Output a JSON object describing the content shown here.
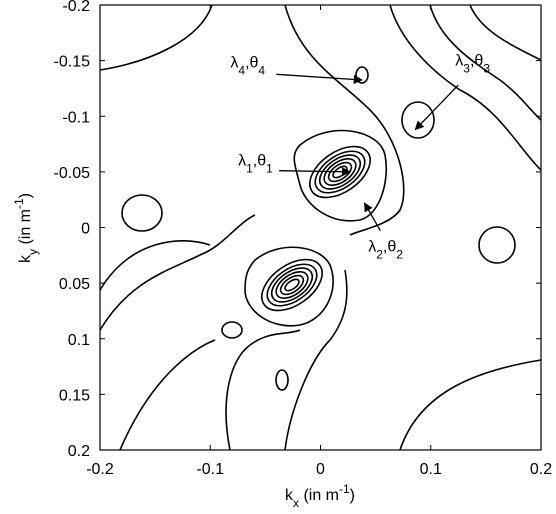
{
  "chart_data": {
    "type": "contour",
    "xlabel": [
      "k",
      "x",
      " (in m",
      "-1",
      ")"
    ],
    "ylabel": [
      "k",
      "y",
      " (in m",
      "-1",
      ")"
    ],
    "xlim": [
      -0.2,
      0.2
    ],
    "ylim": [
      -0.2,
      0.2
    ],
    "y_inverted": true,
    "xticks": [
      -0.2,
      -0.1,
      0,
      0.1,
      0.2
    ],
    "yticks": [
      -0.2,
      -0.15,
      -0.1,
      -0.05,
      0,
      0.05,
      0.1,
      0.15,
      0.2
    ],
    "color": "#000000",
    "annotations": [
      {
        "parts": [
          "λ",
          "4",
          ",θ",
          "4"
        ],
        "xytext": [
          -0.066,
          -0.149
        ],
        "xy": [
          0.0376,
          -0.1326
        ]
      },
      {
        "parts": [
          "λ",
          "3",
          ",θ",
          "3"
        ],
        "xytext": [
          0.138,
          -0.151
        ],
        "xy": [
          0.086,
          -0.088
        ]
      },
      {
        "parts": [
          "λ",
          "1",
          ",θ",
          "1"
        ],
        "xytext": [
          -0.059,
          -0.061
        ],
        "xy": [
          0.027,
          -0.05
        ]
      },
      {
        "parts": [
          "λ",
          "2",
          ",θ",
          "2"
        ],
        "xytext": [
          0.059,
          0.016
        ],
        "xy": [
          0.04,
          -0.022
        ]
      }
    ]
  }
}
